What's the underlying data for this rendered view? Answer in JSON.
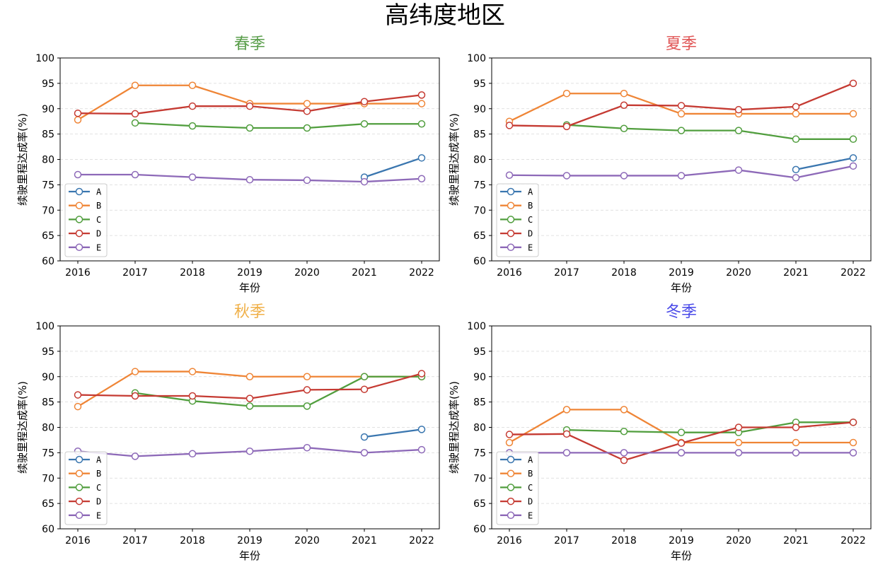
{
  "page": {
    "title": "高纬度地区"
  },
  "chart_data": [
    {
      "type": "line",
      "title": "春季",
      "title_color": "#5a9e4b",
      "xlabel": "年份",
      "ylabel": "续驶里程达成率(%)",
      "x": [
        2016,
        2017,
        2018,
        2019,
        2020,
        2021,
        2022
      ],
      "ylim": [
        60,
        100
      ],
      "yticks": [
        60,
        65,
        70,
        75,
        80,
        85,
        90,
        95,
        100
      ],
      "grid": "horizontal-dashed",
      "legend": "bottom-left",
      "series": [
        {
          "name": "A",
          "color": "#3a76af",
          "values": [
            null,
            null,
            null,
            null,
            null,
            76.5,
            80.3
          ]
        },
        {
          "name": "B",
          "color": "#ef8536",
          "values": [
            87.8,
            94.6,
            94.6,
            91.0,
            91.0,
            91.0,
            91.0
          ]
        },
        {
          "name": "C",
          "color": "#519e3e",
          "values": [
            null,
            87.2,
            86.6,
            86.2,
            86.2,
            87.0,
            87.0
          ]
        },
        {
          "name": "D",
          "color": "#c53a32",
          "values": [
            89.1,
            89.0,
            90.5,
            90.5,
            89.5,
            91.4,
            92.7
          ]
        },
        {
          "name": "E",
          "color": "#8d69b8",
          "values": [
            77.0,
            77.0,
            76.5,
            76.0,
            75.9,
            75.6,
            76.2
          ]
        }
      ]
    },
    {
      "type": "line",
      "title": "夏季",
      "title_color": "#e05555",
      "xlabel": "年份",
      "ylabel": "续驶里程达成率(%)",
      "x": [
        2016,
        2017,
        2018,
        2019,
        2020,
        2021,
        2022
      ],
      "ylim": [
        60,
        100
      ],
      "yticks": [
        60,
        65,
        70,
        75,
        80,
        85,
        90,
        95,
        100
      ],
      "grid": "horizontal-dashed",
      "legend": "bottom-left",
      "series": [
        {
          "name": "A",
          "color": "#3a76af",
          "values": [
            null,
            null,
            null,
            null,
            null,
            78.0,
            80.3
          ]
        },
        {
          "name": "B",
          "color": "#ef8536",
          "values": [
            87.5,
            93.0,
            93.0,
            89.0,
            89.0,
            89.0,
            89.0
          ]
        },
        {
          "name": "C",
          "color": "#519e3e",
          "values": [
            null,
            86.8,
            86.1,
            85.7,
            85.7,
            84.0,
            84.0
          ]
        },
        {
          "name": "D",
          "color": "#c53a32",
          "values": [
            86.7,
            86.5,
            90.7,
            90.6,
            89.8,
            90.4,
            95.0
          ]
        },
        {
          "name": "E",
          "color": "#8d69b8",
          "values": [
            76.9,
            76.8,
            76.8,
            76.8,
            77.9,
            76.4,
            78.7
          ]
        }
      ]
    },
    {
      "type": "line",
      "title": "秋季",
      "title_color": "#f0b048",
      "xlabel": "年份",
      "ylabel": "续驶里程达成率(%)",
      "x": [
        2016,
        2017,
        2018,
        2019,
        2020,
        2021,
        2022
      ],
      "ylim": [
        60,
        100
      ],
      "yticks": [
        60,
        65,
        70,
        75,
        80,
        85,
        90,
        95,
        100
      ],
      "grid": "horizontal-dashed",
      "legend": "bottom-left",
      "series": [
        {
          "name": "A",
          "color": "#3a76af",
          "values": [
            null,
            null,
            null,
            null,
            null,
            78.1,
            79.6
          ]
        },
        {
          "name": "B",
          "color": "#ef8536",
          "values": [
            84.1,
            91.0,
            91.0,
            90.0,
            90.0,
            90.0,
            90.0
          ]
        },
        {
          "name": "C",
          "color": "#519e3e",
          "values": [
            null,
            86.8,
            85.2,
            84.2,
            84.2,
            90.0,
            90.0
          ]
        },
        {
          "name": "D",
          "color": "#c53a32",
          "values": [
            86.4,
            86.2,
            86.2,
            85.7,
            87.4,
            87.5,
            90.6
          ]
        },
        {
          "name": "E",
          "color": "#8d69b8",
          "values": [
            75.3,
            74.3,
            74.8,
            75.3,
            76.0,
            75.0,
            75.6
          ]
        }
      ]
    },
    {
      "type": "line",
      "title": "冬季",
      "title_color": "#4a4ae8",
      "xlabel": "年份",
      "ylabel": "续驶里程达成率(%)",
      "x": [
        2016,
        2017,
        2018,
        2019,
        2020,
        2021,
        2022
      ],
      "ylim": [
        60,
        100
      ],
      "yticks": [
        60,
        65,
        70,
        75,
        80,
        85,
        90,
        95,
        100
      ],
      "grid": "horizontal-dashed",
      "legend": "bottom-left",
      "series": [
        {
          "name": "A",
          "color": "#3a76af",
          "values": [
            null,
            null,
            null,
            null,
            null,
            null,
            null
          ]
        },
        {
          "name": "B",
          "color": "#ef8536",
          "values": [
            77.0,
            83.5,
            83.5,
            77.0,
            77.0,
            77.0,
            77.0
          ]
        },
        {
          "name": "C",
          "color": "#519e3e",
          "values": [
            null,
            79.5,
            79.2,
            79.0,
            79.0,
            81.0,
            81.0
          ]
        },
        {
          "name": "D",
          "color": "#c53a32",
          "values": [
            78.6,
            78.7,
            73.5,
            76.9,
            80.0,
            80.0,
            81.0
          ]
        },
        {
          "name": "E",
          "color": "#8d69b8",
          "values": [
            75.0,
            75.0,
            75.0,
            75.0,
            75.0,
            75.0,
            75.0
          ]
        }
      ]
    }
  ]
}
